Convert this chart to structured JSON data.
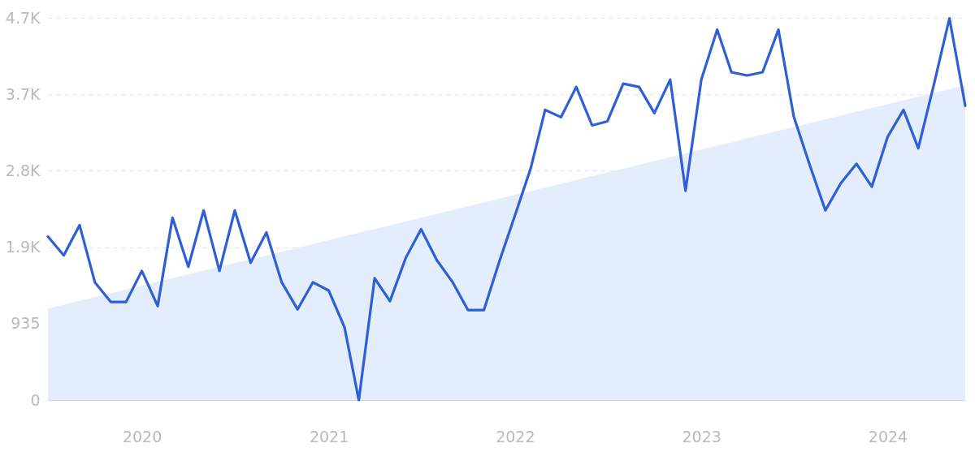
{
  "chart_data": {
    "type": "line",
    "x": [
      "2019-07",
      "2019-08",
      "2019-09",
      "2019-10",
      "2019-11",
      "2019-12",
      "2020-01",
      "2020-02",
      "2020-03",
      "2020-04",
      "2020-05",
      "2020-06",
      "2020-07",
      "2020-08",
      "2020-09",
      "2020-10",
      "2020-11",
      "2020-12",
      "2021-01",
      "2021-02",
      "2021-03",
      "2021-04",
      "2021-05",
      "2021-06",
      "2021-07",
      "2021-08",
      "2021-09",
      "2021-10",
      "2021-11",
      "2021-12",
      "2022-01",
      "2022-02",
      "2022-03",
      "2022-04",
      "2022-05",
      "2022-06",
      "2022-07",
      "2022-08",
      "2022-09",
      "2022-10",
      "2022-11",
      "2022-12",
      "2023-01",
      "2023-02",
      "2023-03",
      "2023-04",
      "2023-05",
      "2023-06",
      "2023-07",
      "2023-08",
      "2023-09",
      "2023-10",
      "2023-11",
      "2023-12",
      "2024-01",
      "2024-02",
      "2024-03",
      "2024-04",
      "2024-05",
      "2024-06"
    ],
    "series": [
      {
        "type": "area",
        "color": "#e3edfb",
        "x": [
          "2019-07",
          "2024-06"
        ],
        "values": [
          1120,
          3850
        ]
      },
      {
        "color": "#2f5fd6",
        "values": [
          2000,
          1770,
          2140,
          1440,
          1200,
          1200,
          1580,
          1150,
          2230,
          1630,
          2320,
          1580,
          2320,
          1680,
          2050,
          1440,
          1110,
          1440,
          1340,
          890,
          0,
          1490,
          1210,
          1740,
          2090,
          1710,
          1440,
          1100,
          1100,
          1690,
          2260,
          2840,
          3550,
          3460,
          3830,
          3360,
          3410,
          3870,
          3830,
          3510,
          3920,
          2560,
          3920,
          4530,
          4010,
          3970,
          4010,
          4530,
          3470,
          2880,
          2320,
          2650,
          2890,
          2610,
          3220,
          3550,
          3080,
          3870,
          4670,
          3600
        ]
      }
    ],
    "xlim": [
      "2019-07",
      "2024-06"
    ],
    "xticks": [
      {
        "value": "2020-01",
        "label": "2020"
      },
      {
        "value": "2021-01",
        "label": "2021"
      },
      {
        "value": "2022-01",
        "label": "2022"
      },
      {
        "value": "2023-01",
        "label": "2023"
      },
      {
        "value": "2024-01",
        "label": "2024"
      }
    ],
    "ylim": [
      0,
      4675
    ],
    "yticks": [
      0,
      935,
      {
        "value": 1870,
        "label": "1.9K"
      },
      {
        "value": 2805,
        "label": "2.8K"
      },
      {
        "value": 3740,
        "label": "3.7K"
      },
      {
        "value": 4675,
        "label": "4.7K"
      }
    ],
    "grid": "y",
    "marker": "none",
    "line_style": "solid"
  }
}
